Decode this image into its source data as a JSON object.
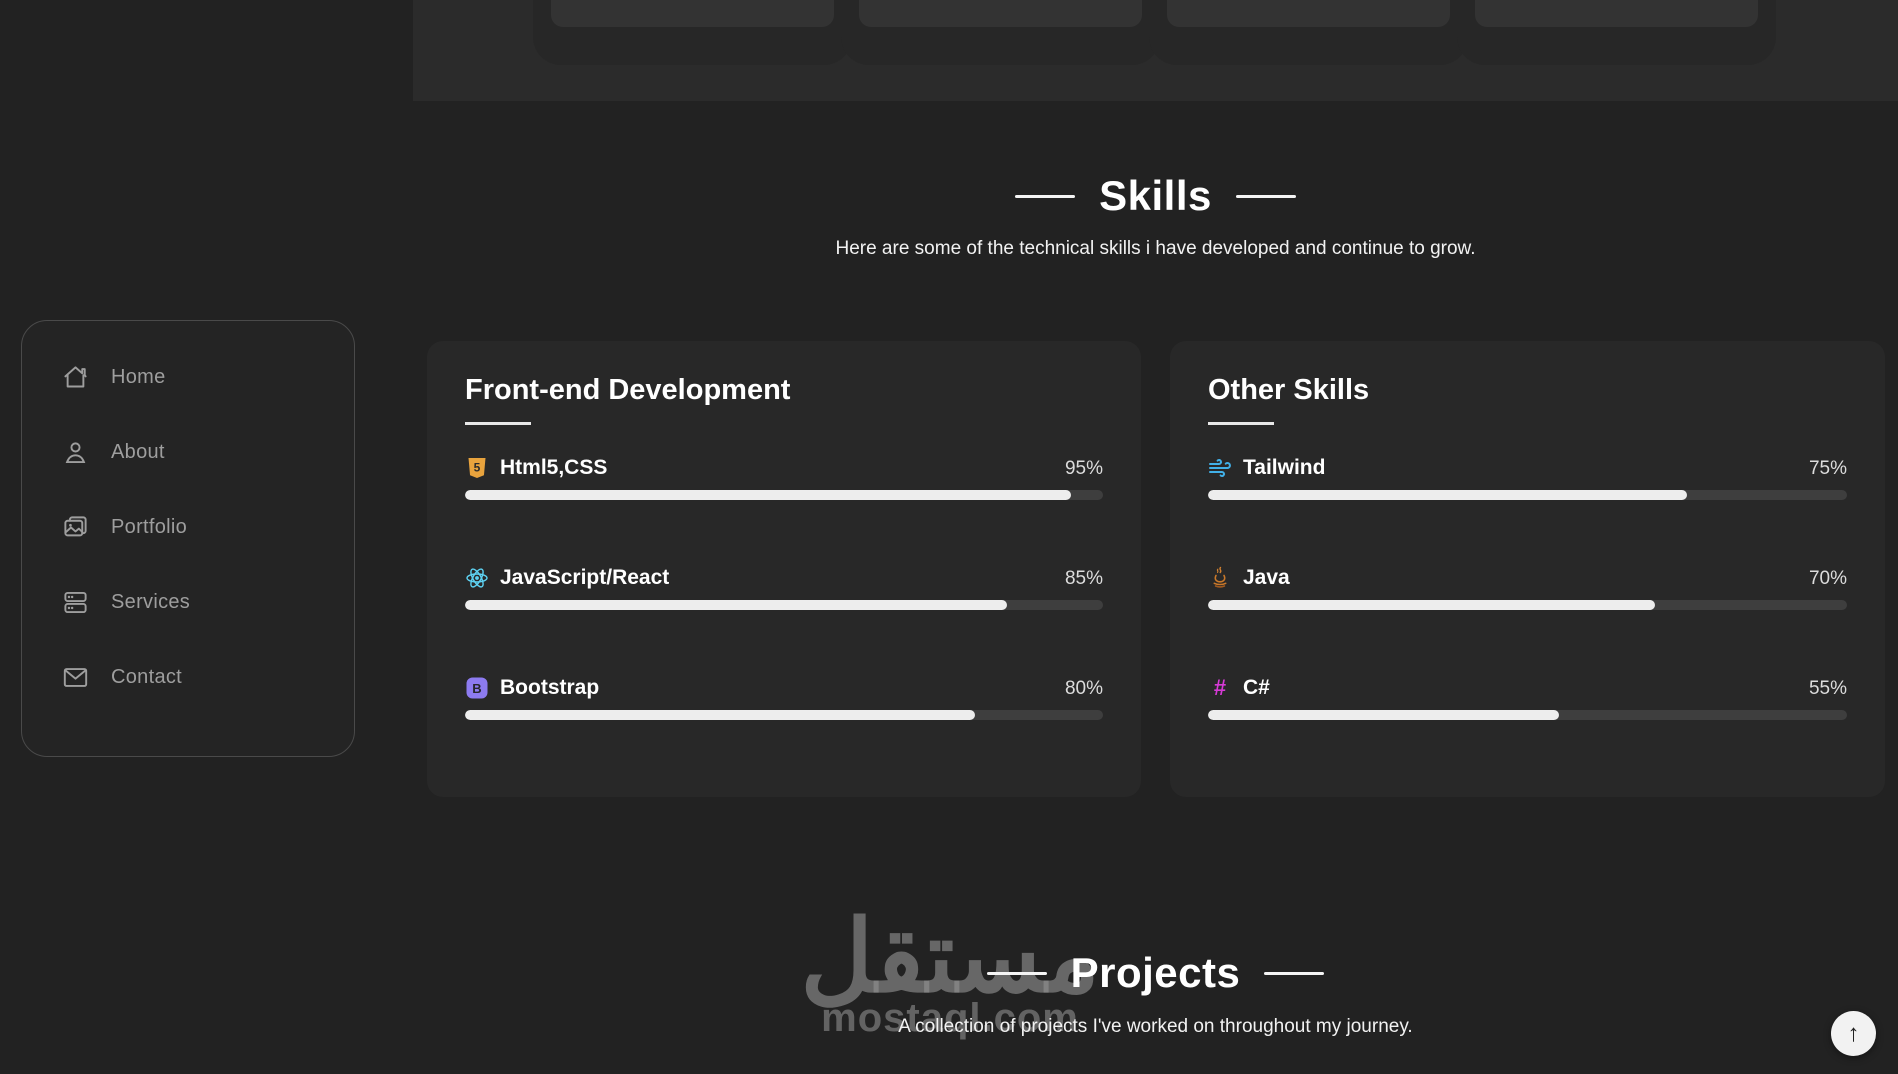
{
  "colors": {
    "page_bg": "#222222",
    "panel_bg": "#2b2b2b",
    "card_bg": "#282828",
    "bar_track": "#3e3e3e",
    "bar_fill": "#ededed",
    "sidebar_text": "#9e9e9e",
    "heading_text": "#ffffff",
    "html5_icon_color": "#e8a33d",
    "react_icon_color": "#5ed3f3",
    "bootstrap_icon_color": "#8d7bf0",
    "tailwind_icon_color": "#41b0e8",
    "java_icon_color": "#c9782a",
    "csharp_icon_color": "#d63ad6"
  },
  "sidebar": {
    "items": [
      {
        "label": "Home",
        "icon": "home-icon"
      },
      {
        "label": "About",
        "icon": "person-icon"
      },
      {
        "label": "Portfolio",
        "icon": "images-icon"
      },
      {
        "label": "Services",
        "icon": "server-icon"
      },
      {
        "label": "Contact",
        "icon": "envelope-icon"
      }
    ]
  },
  "skills_section": {
    "title": "Skills",
    "subtitle": "Here are some of the technical skills i have developed and continue to grow.",
    "cards": [
      {
        "title": "Front-end Development",
        "skills": [
          {
            "name": "Html5,CSS",
            "icon": "html5-icon",
            "percent": 95,
            "percent_label": "95%"
          },
          {
            "name": "JavaScript/React",
            "icon": "react-icon",
            "percent": 85,
            "percent_label": "85%"
          },
          {
            "name": "Bootstrap",
            "icon": "bootstrap-icon",
            "percent": 80,
            "percent_label": "80%"
          }
        ]
      },
      {
        "title": "Other Skills",
        "skills": [
          {
            "name": "Tailwind",
            "icon": "tailwind-icon",
            "percent": 75,
            "percent_label": "75%"
          },
          {
            "name": "Java",
            "icon": "java-icon",
            "percent": 70,
            "percent_label": "70%"
          },
          {
            "name": "C#",
            "icon": "csharp-icon",
            "percent": 55,
            "percent_label": "55%"
          }
        ]
      }
    ]
  },
  "projects_section": {
    "title": "Projects",
    "subtitle": "A collection of projects I've worked on throughout my journey."
  },
  "watermark": {
    "arabic": "مستقل",
    "domain": "mostaql.com"
  },
  "scroll_top": {
    "arrow": "↑"
  }
}
